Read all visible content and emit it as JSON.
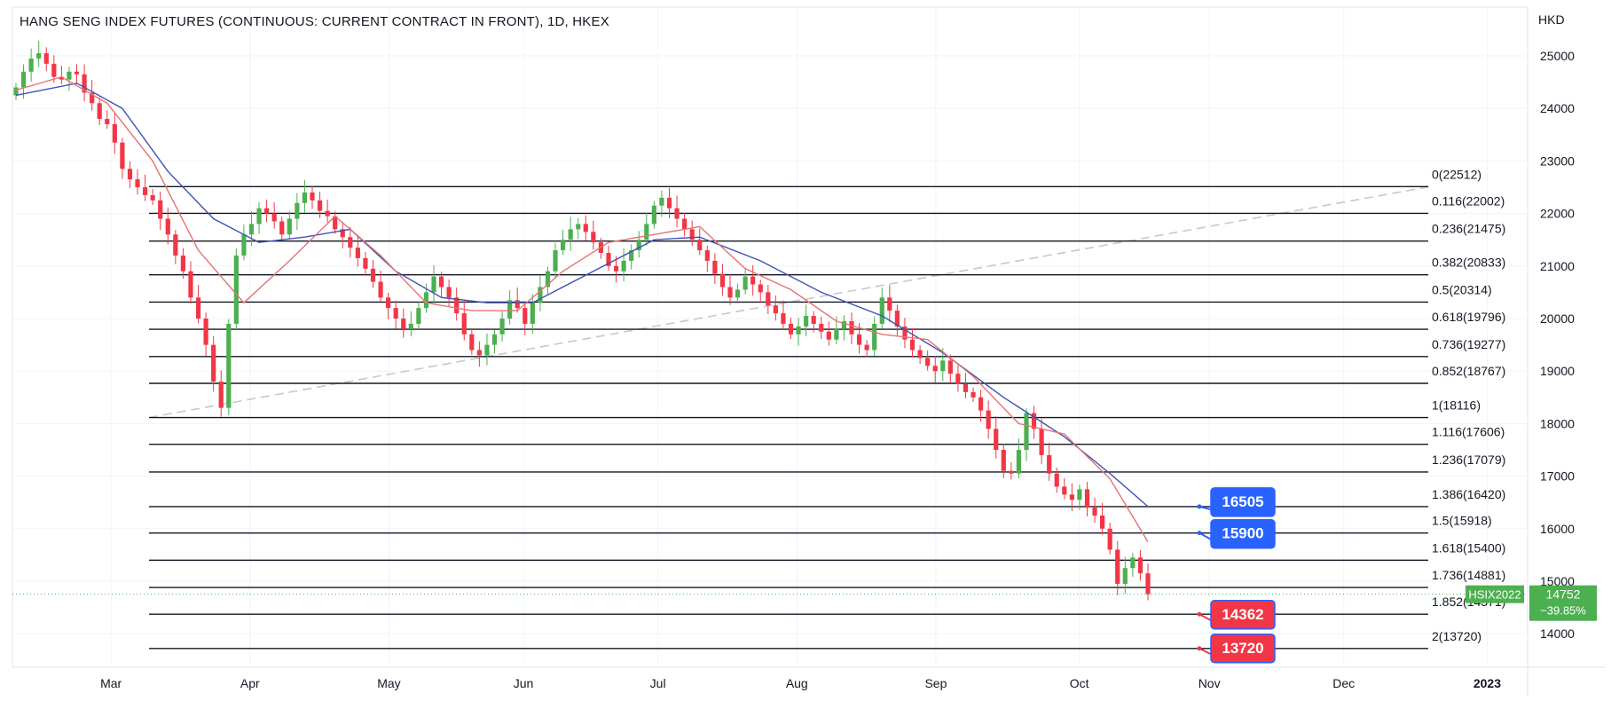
{
  "title": "HANG SENG INDEX FUTURES (CONTINUOUS: CURRENT CONTRACT IN FRONT), 1D, HKEX",
  "currency": "HKD",
  "colors": {
    "up": "#4caf50",
    "down": "#f23645",
    "ma_fast": "#e57373",
    "ma_slow": "#3f51b5",
    "fib_line": "#131722",
    "trend_line": "#c8c8c8",
    "blue_label": "#2962ff",
    "red_label": "#f23645",
    "price_tag": "#4caf50"
  },
  "chart_data": {
    "type": "candlestick",
    "symbol": "HSIX2022",
    "last_price": "14752",
    "change": "−39.85%",
    "y_ticks": [
      "25000",
      "24000",
      "23000",
      "22000",
      "21000",
      "20000",
      "19000",
      "18000",
      "17000",
      "16000",
      "15000",
      "14000"
    ],
    "x_labels": [
      {
        "date": "2022-03-01",
        "label": "Mar"
      },
      {
        "date": "2022-04-01",
        "label": "Apr"
      },
      {
        "date": "2022-05-02",
        "label": "May"
      },
      {
        "date": "2022-06-01",
        "label": "Jun"
      },
      {
        "date": "2022-07-01",
        "label": "Jul"
      },
      {
        "date": "2022-08-01",
        "label": "Aug"
      },
      {
        "date": "2022-09-01",
        "label": "Sep"
      },
      {
        "date": "2022-10-03",
        "label": "Oct"
      },
      {
        "date": "2022-11-01",
        "label": "Nov"
      },
      {
        "date": "2022-12-01",
        "label": "Dec"
      },
      {
        "date": "2023-01-02",
        "label": "2023"
      }
    ],
    "closes": [
      24400,
      24700,
      24950,
      25050,
      24850,
      24600,
      24550,
      24700,
      24650,
      24300,
      24100,
      23800,
      23700,
      23350,
      22850,
      22650,
      22500,
      22350,
      22250,
      21900,
      21600,
      21200,
      20900,
      20400,
      20000,
      19500,
      18800,
      18300,
      19900,
      21200,
      21600,
      21800,
      22100,
      22000,
      21850,
      21600,
      21900,
      22200,
      22400,
      22250,
      22050,
      21950,
      21700,
      21550,
      21350,
      21150,
      20950,
      20700,
      20400,
      20200,
      20000,
      19800,
      19900,
      20200,
      20500,
      20800,
      20600,
      20400,
      20100,
      19700,
      19400,
      19300,
      19500,
      19700,
      20000,
      20350,
      20200,
      19900,
      20300,
      20600,
      20900,
      21300,
      21500,
      21700,
      21800,
      21650,
      21450,
      21250,
      21000,
      20900,
      21100,
      21300,
      21500,
      21800,
      22150,
      22300,
      22100,
      21900,
      21700,
      21500,
      21300,
      21100,
      20850,
      20600,
      20400,
      20550,
      20800,
      20650,
      20500,
      20250,
      20100,
      19900,
      19700,
      19850,
      20050,
      19900,
      19750,
      19600,
      19800,
      19950,
      19700,
      19500,
      19400,
      19900,
      20400,
      20150,
      19850,
      19600,
      19400,
      19250,
      19100,
      19000,
      19200,
      18950,
      18750,
      18600,
      18500,
      18250,
      17900,
      17500,
      17100,
      17050,
      17500,
      18200,
      17900,
      17400,
      17050,
      16800,
      16650,
      16550,
      16750,
      16400,
      16250,
      16000,
      15600,
      14950,
      15250,
      15450,
      15150,
      14752
    ],
    "ma_fast_anchors": [
      [
        0,
        24350
      ],
      [
        6,
        24600
      ],
      [
        12,
        24100
      ],
      [
        18,
        23000
      ],
      [
        24,
        21300
      ],
      [
        30,
        20300
      ],
      [
        36,
        21100
      ],
      [
        42,
        21950
      ],
      [
        48,
        21200
      ],
      [
        54,
        20300
      ],
      [
        60,
        20150
      ],
      [
        66,
        20150
      ],
      [
        72,
        20900
      ],
      [
        78,
        21450
      ],
      [
        84,
        21600
      ],
      [
        90,
        21750
      ],
      [
        96,
        20950
      ],
      [
        102,
        20550
      ],
      [
        108,
        19950
      ],
      [
        114,
        19700
      ],
      [
        120,
        19600
      ],
      [
        126,
        18900
      ],
      [
        132,
        18000
      ],
      [
        138,
        17800
      ],
      [
        144,
        16950
      ],
      [
        149,
        15750
      ]
    ],
    "ma_slow_anchors": [
      [
        0,
        24250
      ],
      [
        8,
        24480
      ],
      [
        14,
        24000
      ],
      [
        20,
        22800
      ],
      [
        26,
        21900
      ],
      [
        32,
        21450
      ],
      [
        38,
        21550
      ],
      [
        44,
        21700
      ],
      [
        50,
        20900
      ],
      [
        56,
        20400
      ],
      [
        62,
        20300
      ],
      [
        68,
        20300
      ],
      [
        76,
        20900
      ],
      [
        84,
        21500
      ],
      [
        90,
        21550
      ],
      [
        98,
        21100
      ],
      [
        106,
        20500
      ],
      [
        114,
        20050
      ],
      [
        122,
        19350
      ],
      [
        130,
        18500
      ],
      [
        138,
        17750
      ],
      [
        144,
        17050
      ],
      [
        149,
        16420
      ]
    ],
    "fib_levels": [
      {
        "label": "0(22512)",
        "value": 22512
      },
      {
        "label": "0.116(22002)",
        "value": 22002
      },
      {
        "label": "0.236(21475)",
        "value": 21475
      },
      {
        "label": "0.382(20833)",
        "value": 20833
      },
      {
        "label": "0.5(20314)",
        "value": 20314
      },
      {
        "label": "0.618(19796)",
        "value": 19796
      },
      {
        "label": "0.736(19277)",
        "value": 19277
      },
      {
        "label": "0.852(18767)",
        "value": 18767
      },
      {
        "label": "1(18116)",
        "value": 18116
      },
      {
        "label": "1.116(17606)",
        "value": 17606
      },
      {
        "label": "1.236(17079)",
        "value": 17079
      },
      {
        "label": "1.386(16420)",
        "value": 16420
      },
      {
        "label": "1.5(15918)",
        "value": 15918
      },
      {
        "label": "1.618(15400)",
        "value": 15400
      },
      {
        "label": "1.736(14881)",
        "value": 14881
      },
      {
        "label": "1.852(14371)",
        "value": 14371
      },
      {
        "label": "2(13720)",
        "value": 13720
      }
    ],
    "target_labels": [
      {
        "text": "16505",
        "color": "blue",
        "value": 16505,
        "points_to": 16420
      },
      {
        "text": "15900",
        "color": "blue",
        "value": 15900,
        "points_to": 15918
      },
      {
        "text": "14362",
        "color": "red",
        "value": 14362,
        "points_to": 14371
      },
      {
        "text": "13720",
        "color": "red",
        "value": 13720,
        "points_to": 13720
      }
    ]
  }
}
